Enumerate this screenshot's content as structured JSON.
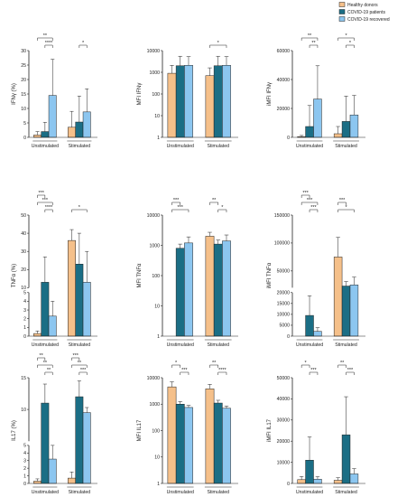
{
  "legend": {
    "position": "top-right",
    "items": [
      {
        "label": "Healthy donors",
        "color": "#F5C08A"
      },
      {
        "label": "COVID-19 patients",
        "color": "#1B6E85"
      },
      {
        "label": "COVID-19 recovered",
        "color": "#8CC6F0"
      }
    ]
  },
  "colors": {
    "healthy": "#F5C08A",
    "patients": "#1B6E85",
    "recovered": "#8CC6F0",
    "axis": "#222222"
  },
  "groups": [
    "Unstimulated",
    "Stimulated"
  ],
  "chart_data": [
    {
      "type": "bar",
      "ylabel": "IFNγ (%)",
      "yscale": "linear",
      "ylim": [
        0,
        30
      ],
      "ticks": [
        "0",
        "5",
        "10",
        "15",
        "20",
        "25",
        "30"
      ],
      "categories": [
        "Unstimulated",
        "Stimulated"
      ],
      "series": [
        {
          "values": [
            0.8,
            3.5
          ],
          "errors": [
            1.2,
            5.5
          ]
        },
        {
          "values": [
            2.0,
            5.3
          ],
          "errors": [
            3.2,
            9.0
          ]
        },
        {
          "values": [
            14.5,
            8.8
          ],
          "errors": [
            12.5,
            8.0
          ]
        }
      ],
      "significance": [
        {
          "group": 0,
          "from": 0,
          "to": 2,
          "label": "**"
        },
        {
          "group": 0,
          "from": 1,
          "to": 2,
          "label": "****"
        },
        {
          "group": 1,
          "from": 1,
          "to": 2,
          "label": "*"
        }
      ]
    },
    {
      "type": "bar",
      "ylabel": "MFI IFNγ",
      "yscale": "log",
      "ylim": [
        1,
        10000
      ],
      "ticks": [
        "1",
        "10",
        "100",
        "1000",
        "10000"
      ],
      "categories": [
        "Unstimulated",
        "Stimulated"
      ],
      "series": [
        {
          "values": [
            900,
            700
          ],
          "errors": [
            1200,
            900
          ]
        },
        {
          "values": [
            2000,
            2000
          ],
          "errors": [
            3500,
            3500
          ]
        },
        {
          "values": [
            2100,
            2100
          ],
          "errors": [
            3200,
            3200
          ]
        }
      ],
      "significance": [
        {
          "group": 1,
          "from": 0,
          "to": 2,
          "label": "*"
        }
      ]
    },
    {
      "type": "bar",
      "ylabel": "iMFI IFNγ",
      "yscale": "linear",
      "ylim": [
        0,
        60000
      ],
      "ticks": [
        "0",
        "20000",
        "40000",
        "60000"
      ],
      "categories": [
        "Unstimulated",
        "Stimulated"
      ],
      "series": [
        {
          "values": [
            500,
            2500
          ],
          "errors": [
            800,
            5000
          ]
        },
        {
          "values": [
            7500,
            11000
          ],
          "errors": [
            14500,
            17500
          ]
        },
        {
          "values": [
            26500,
            15500
          ],
          "errors": [
            23000,
            13500
          ]
        }
      ],
      "significance": [
        {
          "group": 0,
          "from": 0,
          "to": 2,
          "label": "**"
        },
        {
          "group": 0,
          "from": 1,
          "to": 2,
          "label": "**"
        },
        {
          "group": 1,
          "from": 0,
          "to": 2,
          "label": "*"
        },
        {
          "group": 1,
          "from": 1,
          "to": 2,
          "label": "*"
        }
      ]
    },
    {
      "type": "bar",
      "ylabel": "TNFα (%)",
      "yscale": "broken",
      "ylim": [
        0,
        50
      ],
      "broken_axis": {
        "lower": [
          0,
          5
        ],
        "upper": [
          10,
          50
        ]
      },
      "ticks": [
        "0",
        "1",
        "2",
        "3",
        "4",
        "5",
        "10",
        "20",
        "30",
        "40",
        "50"
      ],
      "categories": [
        "Unstimulated",
        "Stimulated"
      ],
      "series": [
        {
          "values": [
            0.3,
            36
          ],
          "errors": [
            0.3,
            6
          ]
        },
        {
          "values": [
            13,
            23
          ],
          "errors": [
            14,
            17
          ]
        },
        {
          "values": [
            2.3,
            13
          ],
          "errors": [
            1.7,
            17
          ]
        }
      ],
      "significance": [
        {
          "group": 0,
          "from": 0,
          "to": 1,
          "label": "***"
        },
        {
          "group": 0,
          "from": 0,
          "to": 2,
          "label": "***"
        },
        {
          "group": 0,
          "from": 1,
          "to": 2,
          "label": "****"
        },
        {
          "group": 1,
          "from": 0,
          "to": 2,
          "label": "*"
        }
      ]
    },
    {
      "type": "bar",
      "ylabel": "MFI TNFα",
      "yscale": "log",
      "ylim": [
        1,
        10000
      ],
      "ticks": [
        "1",
        "10",
        "100",
        "1000",
        "10000"
      ],
      "categories": [
        "Unstimulated",
        "Stimulated"
      ],
      "series": [
        {
          "values": [
            1,
            2000
          ],
          "errors": [
            0,
            700
          ]
        },
        {
          "values": [
            800,
            1100
          ],
          "errors": [
            300,
            400
          ]
        },
        {
          "values": [
            1200,
            1400
          ],
          "errors": [
            700,
            800
          ]
        }
      ],
      "significance": [
        {
          "group": 0,
          "from": 0,
          "to": 1,
          "label": "***"
        },
        {
          "group": 0,
          "from": 0,
          "to": 2,
          "label": "***"
        },
        {
          "group": 1,
          "from": 0,
          "to": 1,
          "label": "**"
        },
        {
          "group": 1,
          "from": 1,
          "to": 2,
          "label": "*"
        }
      ]
    },
    {
      "type": "bar",
      "ylabel": "iMFI TNFα",
      "yscale": "broken",
      "ylim": [
        0,
        150000
      ],
      "broken_axis": {
        "lower": [
          0,
          20000
        ],
        "upper": [
          20000,
          150000
        ]
      },
      "ticks": [
        "0",
        "5000",
        "10000",
        "15000",
        "20000",
        "50000",
        "100000",
        "150000"
      ],
      "categories": [
        "Unstimulated",
        "Stimulated"
      ],
      "series": [
        {
          "values": [
            0,
            75000
          ],
          "errors": [
            0,
            35000
          ]
        },
        {
          "values": [
            9500,
            23000
          ],
          "errors": [
            9000,
            8000
          ]
        },
        {
          "values": [
            2200,
            25000
          ],
          "errors": [
            1700,
            14000
          ]
        }
      ],
      "significance": [
        {
          "group": 0,
          "from": 0,
          "to": 1,
          "label": "***"
        },
        {
          "group": 0,
          "from": 0,
          "to": 2,
          "label": "***"
        },
        {
          "group": 0,
          "from": 1,
          "to": 2,
          "label": "***"
        },
        {
          "group": 1,
          "from": 0,
          "to": 1,
          "label": "***"
        },
        {
          "group": 1,
          "from": 0,
          "to": 2,
          "label": "*"
        }
      ]
    },
    {
      "type": "bar",
      "ylabel": "IL17 (%)",
      "yscale": "broken",
      "ylim": [
        0,
        15
      ],
      "broken_axis": {
        "lower": [
          0,
          5
        ],
        "upper": [
          5,
          15
        ]
      },
      "ticks": [
        "0",
        "1",
        "2",
        "3",
        "4",
        "5",
        "10",
        "15"
      ],
      "categories": [
        "Unstimulated",
        "Stimulated"
      ],
      "series": [
        {
          "values": [
            0.3,
            0.7
          ],
          "errors": [
            0.3,
            0.8
          ]
        },
        {
          "values": [
            11,
            12
          ],
          "errors": [
            3,
            2.5
          ]
        },
        {
          "values": [
            3.2,
            9.5
          ],
          "errors": [
            1.8,
            0.8
          ]
        }
      ],
      "significance": [
        {
          "group": 0,
          "from": 0,
          "to": 1,
          "label": "**"
        },
        {
          "group": 0,
          "from": 0,
          "to": 2,
          "label": "**"
        },
        {
          "group": 0,
          "from": 1,
          "to": 2,
          "label": "**"
        },
        {
          "group": 1,
          "from": 0,
          "to": 1,
          "label": "***"
        },
        {
          "group": 1,
          "from": 0,
          "to": 2,
          "label": "**"
        },
        {
          "group": 1,
          "from": 1,
          "to": 2,
          "label": "***"
        }
      ]
    },
    {
      "type": "bar",
      "ylabel": "MFI IL17",
      "yscale": "log",
      "ylim": [
        1,
        10000
      ],
      "ticks": [
        "1",
        "10",
        "100",
        "1000",
        "10000"
      ],
      "categories": [
        "Unstimulated",
        "Stimulated"
      ],
      "series": [
        {
          "values": [
            4500,
            3800
          ],
          "errors": [
            2500,
            1800
          ]
        },
        {
          "values": [
            1000,
            1100
          ],
          "errors": [
            250,
            300
          ]
        },
        {
          "values": [
            750,
            700
          ],
          "errors": [
            150,
            150
          ]
        }
      ],
      "significance": [
        {
          "group": 0,
          "from": 0,
          "to": 1,
          "label": "*"
        },
        {
          "group": 0,
          "from": 1,
          "to": 2,
          "label": "***"
        },
        {
          "group": 1,
          "from": 0,
          "to": 1,
          "label": "**"
        },
        {
          "group": 1,
          "from": 1,
          "to": 2,
          "label": "****"
        }
      ]
    },
    {
      "type": "bar",
      "ylabel": "iMFI IL17",
      "yscale": "linear",
      "ylim": [
        0,
        50000
      ],
      "ticks": [
        "0",
        "10000",
        "20000",
        "30000",
        "40000",
        "50000"
      ],
      "categories": [
        "Unstimulated",
        "Stimulated"
      ],
      "series": [
        {
          "values": [
            1800,
            1500
          ],
          "errors": [
            1500,
            1200
          ]
        },
        {
          "values": [
            11000,
            23000
          ],
          "errors": [
            11000,
            18000
          ]
        },
        {
          "values": [
            2000,
            4500
          ],
          "errors": [
            1200,
            2500
          ]
        }
      ],
      "significance": [
        {
          "group": 0,
          "from": 0,
          "to": 1,
          "label": "*"
        },
        {
          "group": 0,
          "from": 1,
          "to": 2,
          "label": "***"
        },
        {
          "group": 1,
          "from": 0,
          "to": 1,
          "label": "**"
        },
        {
          "group": 1,
          "from": 1,
          "to": 2,
          "label": "***"
        }
      ]
    }
  ]
}
